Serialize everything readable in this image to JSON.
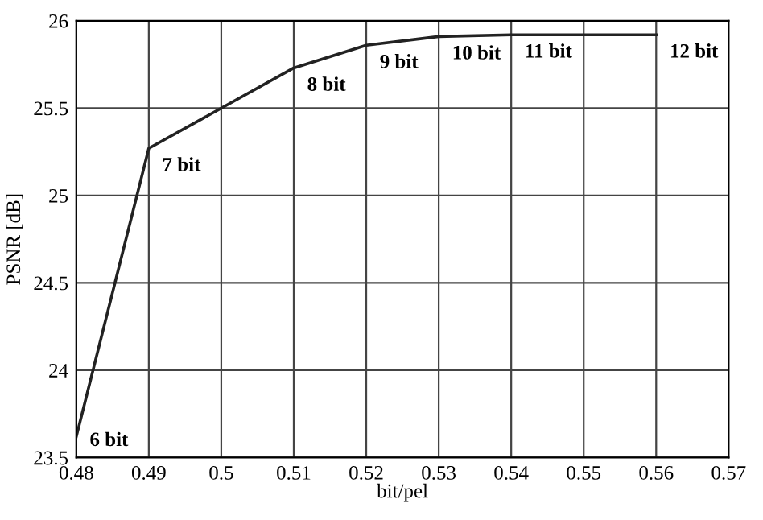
{
  "chart_data": {
    "type": "line",
    "xlabel": "bit/pel",
    "ylabel": "PSNR [dB]",
    "x": [
      0.48,
      0.49,
      0.51,
      0.52,
      0.53,
      0.54,
      0.56
    ],
    "series": [
      {
        "color": "#222222",
        "values": [
          23.62,
          25.27,
          25.73,
          25.86,
          25.91,
          25.92,
          25.92
        ]
      }
    ],
    "xlim": [
      0.48,
      0.57
    ],
    "xticks": [
      0.48,
      0.49,
      0.5,
      0.51,
      0.52,
      0.53,
      0.54,
      0.55,
      0.56,
      0.57
    ],
    "ylim": [
      23.5,
      26
    ],
    "yticks": [
      23.5,
      24,
      24.5,
      25,
      25.5,
      26
    ],
    "grid": true,
    "line_style": "solid",
    "annotations": [
      {
        "text": "6 bit",
        "x": 0.48,
        "y": 23.62
      },
      {
        "text": "7 bit",
        "x": 0.49,
        "y": 25.27
      },
      {
        "text": "8 bit",
        "x": 0.51,
        "y": 25.73
      },
      {
        "text": "9 bit",
        "x": 0.52,
        "y": 25.86
      },
      {
        "text": "10 bit",
        "x": 0.53,
        "y": 25.91
      },
      {
        "text": "11 bit",
        "x": 0.54,
        "y": 25.92
      },
      {
        "text": "12 bit",
        "x": 0.56,
        "y": 25.92
      }
    ]
  }
}
